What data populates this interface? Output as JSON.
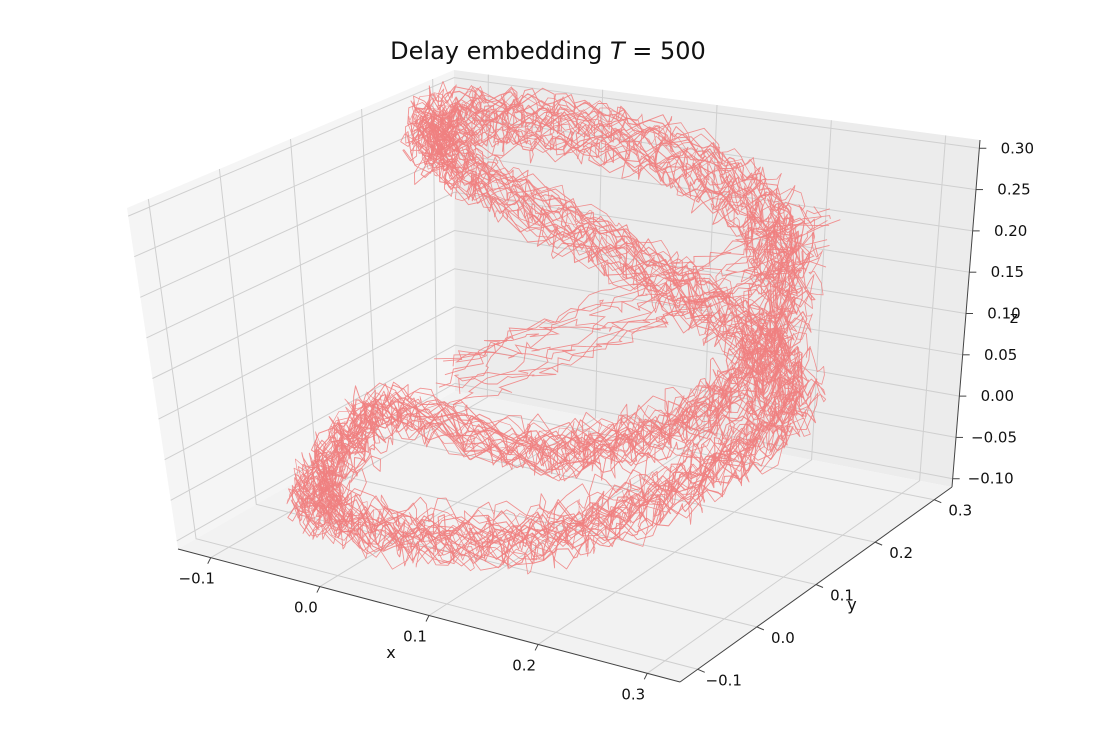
{
  "chart_data": {
    "type": "line",
    "projection": "3d",
    "title": "Delay embedding T = 500",
    "title_parts": {
      "prefix": "Delay embedding ",
      "var": "T",
      "suffix": " = 500"
    },
    "xlabel": "x",
    "ylabel": "y",
    "zlabel": "z",
    "xlim": [
      -0.13,
      0.33
    ],
    "ylim": [
      -0.13,
      0.33
    ],
    "zlim": [
      -0.11,
      0.31
    ],
    "x_ticks": [
      "−0.1",
      "0.0",
      "0.1",
      "0.2",
      "0.3"
    ],
    "y_ticks": [
      "−0.1",
      "0.0",
      "0.1",
      "0.2",
      "0.3"
    ],
    "z_ticks": [
      "−0.10",
      "−0.05",
      "0.00",
      "0.05",
      "0.10",
      "0.15",
      "0.20",
      "0.25",
      "0.30"
    ],
    "grid": true,
    "series": [
      {
        "color": "#f08080",
        "points": [
          [
            -0.09,
            0.16,
            -0.05
          ],
          [
            -0.11,
            0.12,
            -0.08
          ],
          [
            -0.1,
            0.05,
            -0.1
          ],
          [
            -0.05,
            -0.02,
            -0.09
          ],
          [
            0.05,
            -0.06,
            -0.07
          ],
          [
            0.15,
            -0.05,
            -0.05
          ],
          [
            0.22,
            0.0,
            -0.02
          ],
          [
            0.27,
            0.06,
            0.02
          ],
          [
            0.29,
            0.12,
            0.06
          ],
          [
            0.26,
            0.15,
            0.1
          ],
          [
            0.18,
            0.16,
            0.15
          ],
          [
            0.08,
            0.17,
            0.2
          ],
          [
            -0.02,
            0.18,
            0.25
          ],
          [
            -0.07,
            0.2,
            0.28
          ],
          [
            -0.08,
            0.24,
            0.29
          ],
          [
            -0.05,
            0.28,
            0.28
          ],
          [
            0.02,
            0.3,
            0.27
          ],
          [
            0.12,
            0.28,
            0.25
          ],
          [
            0.2,
            0.24,
            0.22
          ],
          [
            0.24,
            0.2,
            0.18
          ],
          [
            0.26,
            0.15,
            0.12
          ],
          [
            0.24,
            0.1,
            0.06
          ],
          [
            0.18,
            0.06,
            0.02
          ],
          [
            0.1,
            0.04,
            0.0
          ]
        ]
      }
    ]
  }
}
